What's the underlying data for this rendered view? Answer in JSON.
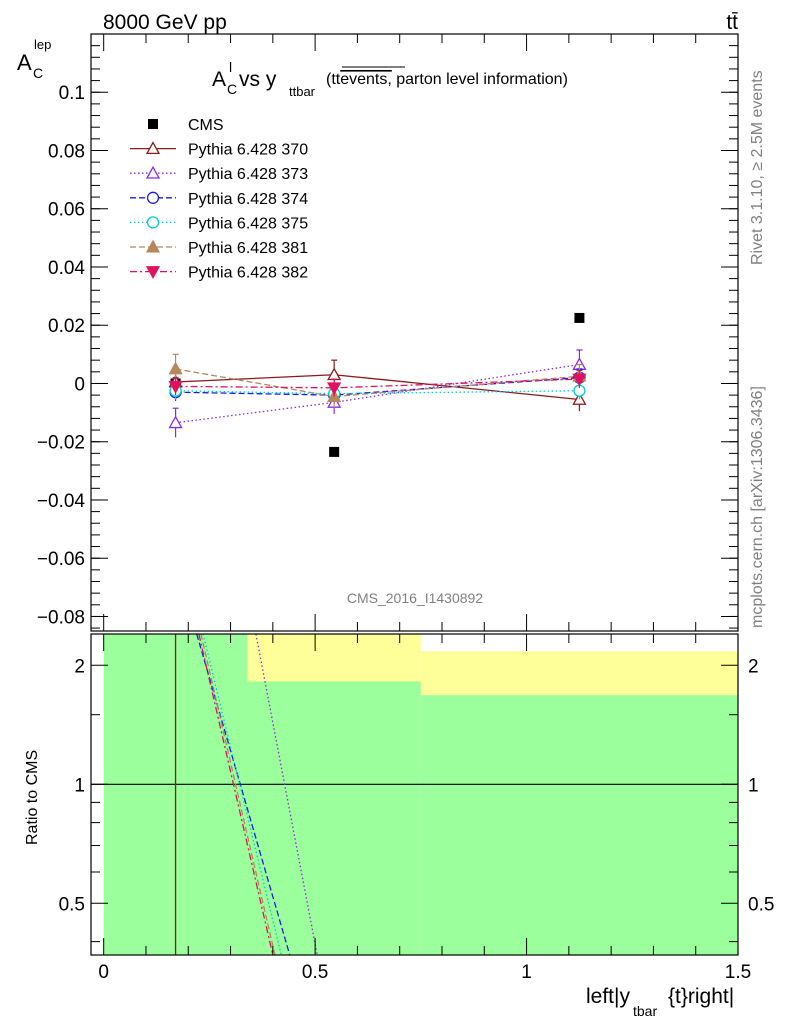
{
  "header": {
    "energy_label": "8000 GeV pp",
    "process_label": "tt̄",
    "rivet_label": "Rivet 3.1.10, ≥ 2.5M events",
    "mcplots_label": "mcplots.cern.ch [arXiv:1306.3436]",
    "analysis_id": "CMS_2016_I1430892"
  },
  "colors": {
    "cms": "#000000",
    "p370": "#8b1a1a",
    "p373": "#8a2be2",
    "p374": "#1a1aee",
    "p375": "#00ced1",
    "p381": "#b8865b",
    "p382": "#e0115f",
    "band_green": "#9bff9b",
    "band_yellow": "#ffff99"
  },
  "chart_data": [
    {
      "type": "scatter",
      "panel": "main",
      "title_main": "A",
      "title_sub": "C",
      "title_sup": "l",
      "title_vs": " vs y",
      "title_vs_sub": "ttbar",
      "title_paren": "(tt",
      "title_over": "events,",
      "title_rest": " parton level information)",
      "ylabel_main": "A",
      "ylabel_sub": "C",
      "ylabel_sup": "lep",
      "xlim": [
        -0.03,
        1.5
      ],
      "ylim": [
        -0.085,
        0.12
      ],
      "x_ticks": [
        0,
        0.5,
        1,
        1.5
      ],
      "y_ticks": [
        -0.08,
        -0.06,
        -0.04,
        -0.02,
        0,
        0.02,
        0.04,
        0.06,
        0.08,
        0.1
      ],
      "y_tick_labels": [
        "−0.08",
        "−0.06",
        "−0.04",
        "−0.02",
        "0",
        "0.02",
        "0.04",
        "0.06",
        "0.08",
        "0.1"
      ],
      "legend_position": "top-left",
      "series": [
        {
          "name": "CMS",
          "key": "cms",
          "marker": "square-filled",
          "line": "none",
          "x": [
            0.17,
            0.545,
            1.125
          ],
          "y": [
            0.0,
            -0.0235,
            0.0225
          ],
          "err": [
            0,
            0,
            0
          ]
        },
        {
          "name": "Pythia 6.428 370",
          "key": "p370",
          "marker": "triangle-up-open",
          "line": "solid",
          "x": [
            0.17,
            0.545,
            1.125
          ],
          "y": [
            0.0005,
            0.003,
            -0.0055
          ],
          "err": [
            0.003,
            0.005,
            0.004
          ]
        },
        {
          "name": "Pythia 6.428 373",
          "key": "p373",
          "marker": "triangle-up-open",
          "line": "dotted",
          "x": [
            0.17,
            0.545,
            1.125
          ],
          "y": [
            -0.0135,
            -0.0065,
            0.0065
          ],
          "err": [
            0.005,
            0.004,
            0.005
          ]
        },
        {
          "name": "Pythia 6.428 374",
          "key": "p374",
          "marker": "circle-open",
          "line": "dashed",
          "x": [
            0.17,
            0.545,
            1.125
          ],
          "y": [
            -0.003,
            -0.004,
            0.002
          ],
          "err": [
            0.003,
            0.003,
            0.003
          ]
        },
        {
          "name": "Pythia 6.428 375",
          "key": "p375",
          "marker": "circle-open",
          "line": "dotted",
          "x": [
            0.17,
            0.545,
            1.125
          ],
          "y": [
            -0.0025,
            -0.0035,
            -0.0025
          ],
          "err": [
            0.003,
            0.003,
            0.003
          ]
        },
        {
          "name": "Pythia 6.428 381",
          "key": "p381",
          "marker": "triangle-up-filled",
          "line": "dashed",
          "x": [
            0.17,
            0.545,
            1.125
          ],
          "y": [
            0.005,
            -0.0045,
            0.0025
          ],
          "err": [
            0.005,
            0.004,
            0.004
          ]
        },
        {
          "name": "Pythia 6.428 382",
          "key": "p382",
          "marker": "triangle-down-filled",
          "line": "dashdot",
          "x": [
            0.17,
            0.545,
            1.125
          ],
          "y": [
            -0.001,
            -0.0015,
            0.0015
          ],
          "err": [
            0.003,
            0.003,
            0.003
          ]
        }
      ]
    },
    {
      "type": "line",
      "panel": "ratio",
      "ylabel": "Ratio to CMS",
      "xlabel_main": "left|y",
      "xlabel_sub": "tbar",
      "xlabel_rest": "{t}right|",
      "xlim": [
        -0.03,
        1.5
      ],
      "ylim_log": [
        0.37,
        2.4
      ],
      "x_ticks": [
        0,
        0.5,
        1,
        1.5
      ],
      "x_tick_labels": [
        "0",
        "0.5",
        "1",
        "1.5"
      ],
      "y_ticks": [
        0.5,
        1,
        2
      ],
      "y_tick_labels": [
        "0.5",
        "1",
        "2"
      ],
      "bands": [
        {
          "x0": 0.0,
          "x1": 0.34,
          "green": [
            0.37,
            2.4
          ],
          "yellow": [
            2.4,
            2.4
          ]
        },
        {
          "x0": 0.34,
          "x1": 0.75,
          "green": [
            0.37,
            1.82
          ],
          "yellow": [
            1.82,
            2.4
          ]
        },
        {
          "x0": 0.75,
          "x1": 1.5,
          "green": [
            0.37,
            1.68
          ],
          "yellow": [
            1.68,
            2.17
          ]
        }
      ],
      "series": [
        {
          "name": "Pythia 6.428 370",
          "key": "p370",
          "line": "solid",
          "x": [
            0.17,
            0.17
          ],
          "y": [
            0.37,
            2.4
          ]
        },
        {
          "name": "Pythia 6.428 373",
          "key": "p373",
          "line": "dotted",
          "x": [
            0.36,
            0.505
          ],
          "y": [
            2.4,
            0.37
          ]
        },
        {
          "name": "Pythia 6.428 374",
          "key": "p374",
          "line": "dashed",
          "x": [
            0.22,
            0.44
          ],
          "y": [
            2.4,
            0.37
          ]
        },
        {
          "name": "Pythia 6.428 375",
          "key": "p375",
          "line": "dotted",
          "x": [
            0.235,
            0.42
          ],
          "y": [
            2.4,
            0.37
          ]
        },
        {
          "name": "Pythia 6.428 381",
          "key": "p381",
          "line": "dashed",
          "x": [
            0.23,
            0.405
          ],
          "y": [
            2.4,
            0.37
          ]
        },
        {
          "name": "Pythia 6.428 382",
          "key": "p382",
          "line": "dashdot",
          "x": [
            0.225,
            0.4
          ],
          "y": [
            2.4,
            0.37
          ]
        }
      ]
    }
  ]
}
